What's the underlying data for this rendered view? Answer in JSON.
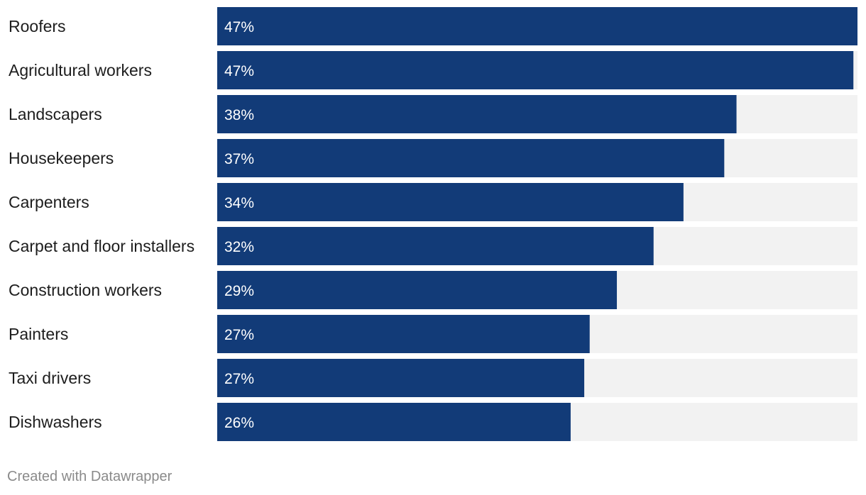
{
  "chart_data": {
    "type": "bar",
    "orientation": "horizontal",
    "categories": [
      "Roofers",
      "Agricultural workers",
      "Landscapers",
      "Housekeepers",
      "Carpenters",
      "Carpet and floor installers",
      "Construction workers",
      "Painters",
      "Taxi drivers",
      "Dishwashers"
    ],
    "values": [
      47.1,
      46.8,
      38.2,
      37.3,
      34.3,
      32.1,
      29.4,
      27.4,
      27.0,
      26.0
    ],
    "value_labels": [
      "47%",
      "47%",
      "38%",
      "37%",
      "34%",
      "32%",
      "29%",
      "27%",
      "27%",
      "26%"
    ],
    "xlim": [
      0,
      47.1
    ],
    "title": "",
    "xlabel": "",
    "ylabel": "",
    "grid": false,
    "colors": {
      "bar": "#123b78",
      "track": "#f2f2f2",
      "label": "#1d1d1d",
      "value_text": "#ffffff"
    }
  },
  "footer": {
    "credit": "Created with Datawrapper"
  }
}
